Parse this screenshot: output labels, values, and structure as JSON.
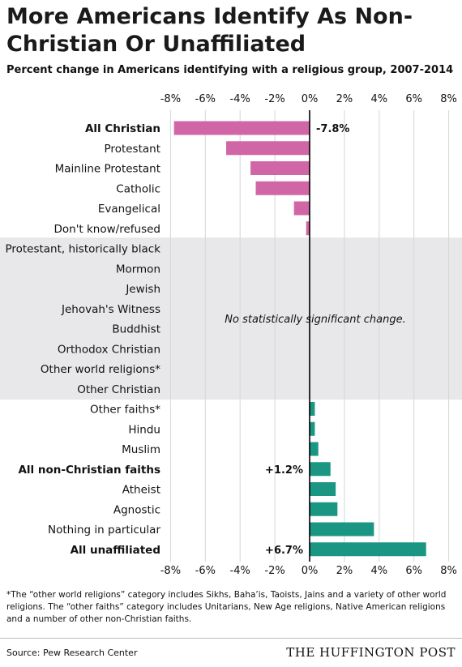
{
  "title": "More Americans Identify As Non-Christian Or Unaffiliated",
  "subtitle": "Percent change in Americans identifying with a religious group, 2007-2014",
  "footnote": "*The “other world religions” category includes Sikhs, Baha’is, Taoists, Jains and a variety of other world religions. The “other faiths” category includes Unitarians, New Age religions, Native American religions and a number of other non-Christian faiths.",
  "source": "Source: Pew Research Center",
  "brand": "THE HUFFINGTON POST",
  "chart_data": {
    "type": "bar",
    "orientation": "horizontal",
    "title": "Percent change in Americans identifying with a religious group, 2007-2014",
    "xlim": [
      -8,
      8
    ],
    "xticks": [
      -8,
      -6,
      -4,
      -2,
      0,
      2,
      4,
      6,
      8
    ],
    "xtick_labels": [
      "-8%",
      "-6%",
      "-4%",
      "-2%",
      "0%",
      "2%",
      "4%",
      "6%",
      "8%"
    ],
    "xtick_positions": [
      "top",
      "bottom"
    ],
    "grid": true,
    "colors": {
      "decline": "#d166a7",
      "increase": "#1b9683",
      "shade": "#e8e8ea"
    },
    "shaded_note": "No statistically significant change.",
    "bars": [
      {
        "category": "All Christian",
        "value": -7.8,
        "bold": true,
        "label": "-7.8%",
        "group": "decline"
      },
      {
        "category": "Protestant",
        "value": -4.8,
        "bold": false,
        "label": "",
        "group": "decline"
      },
      {
        "category": "Mainline Protestant",
        "value": -3.4,
        "bold": false,
        "label": "",
        "group": "decline"
      },
      {
        "category": "Catholic",
        "value": -3.1,
        "bold": false,
        "label": "",
        "group": "decline"
      },
      {
        "category": "Evangelical",
        "value": -0.9,
        "bold": false,
        "label": "",
        "group": "decline"
      },
      {
        "category": "Don't know/refused",
        "value": -0.2,
        "bold": false,
        "label": "",
        "group": "decline"
      },
      {
        "category": "Protestant, historically black",
        "value": null,
        "bold": false,
        "label": "",
        "group": "none"
      },
      {
        "category": "Mormon",
        "value": null,
        "bold": false,
        "label": "",
        "group": "none"
      },
      {
        "category": "Jewish",
        "value": null,
        "bold": false,
        "label": "",
        "group": "none"
      },
      {
        "category": "Jehovah's Witness",
        "value": null,
        "bold": false,
        "label": "",
        "group": "none"
      },
      {
        "category": "Buddhist",
        "value": null,
        "bold": false,
        "label": "",
        "group": "none"
      },
      {
        "category": "Orthodox Christian",
        "value": null,
        "bold": false,
        "label": "",
        "group": "none"
      },
      {
        "category": "Other world religions*",
        "value": null,
        "bold": false,
        "label": "",
        "group": "none"
      },
      {
        "category": "Other Christian",
        "value": null,
        "bold": false,
        "label": "",
        "group": "none"
      },
      {
        "category": "Other faiths*",
        "value": 0.3,
        "bold": false,
        "label": "",
        "group": "increase"
      },
      {
        "category": "Hindu",
        "value": 0.3,
        "bold": false,
        "label": "",
        "group": "increase"
      },
      {
        "category": "Muslim",
        "value": 0.5,
        "bold": false,
        "label": "",
        "group": "increase"
      },
      {
        "category": "All non-Christian faiths",
        "value": 1.2,
        "bold": true,
        "label": "+1.2%",
        "group": "increase"
      },
      {
        "category": "Atheist",
        "value": 1.5,
        "bold": false,
        "label": "",
        "group": "increase"
      },
      {
        "category": "Agnostic",
        "value": 1.6,
        "bold": false,
        "label": "",
        "group": "increase"
      },
      {
        "category": "Nothing in particular",
        "value": 3.7,
        "bold": false,
        "label": "",
        "group": "increase"
      },
      {
        "category": "All unaffiliated",
        "value": 6.7,
        "bold": true,
        "label": "+6.7%",
        "group": "increase"
      }
    ]
  }
}
